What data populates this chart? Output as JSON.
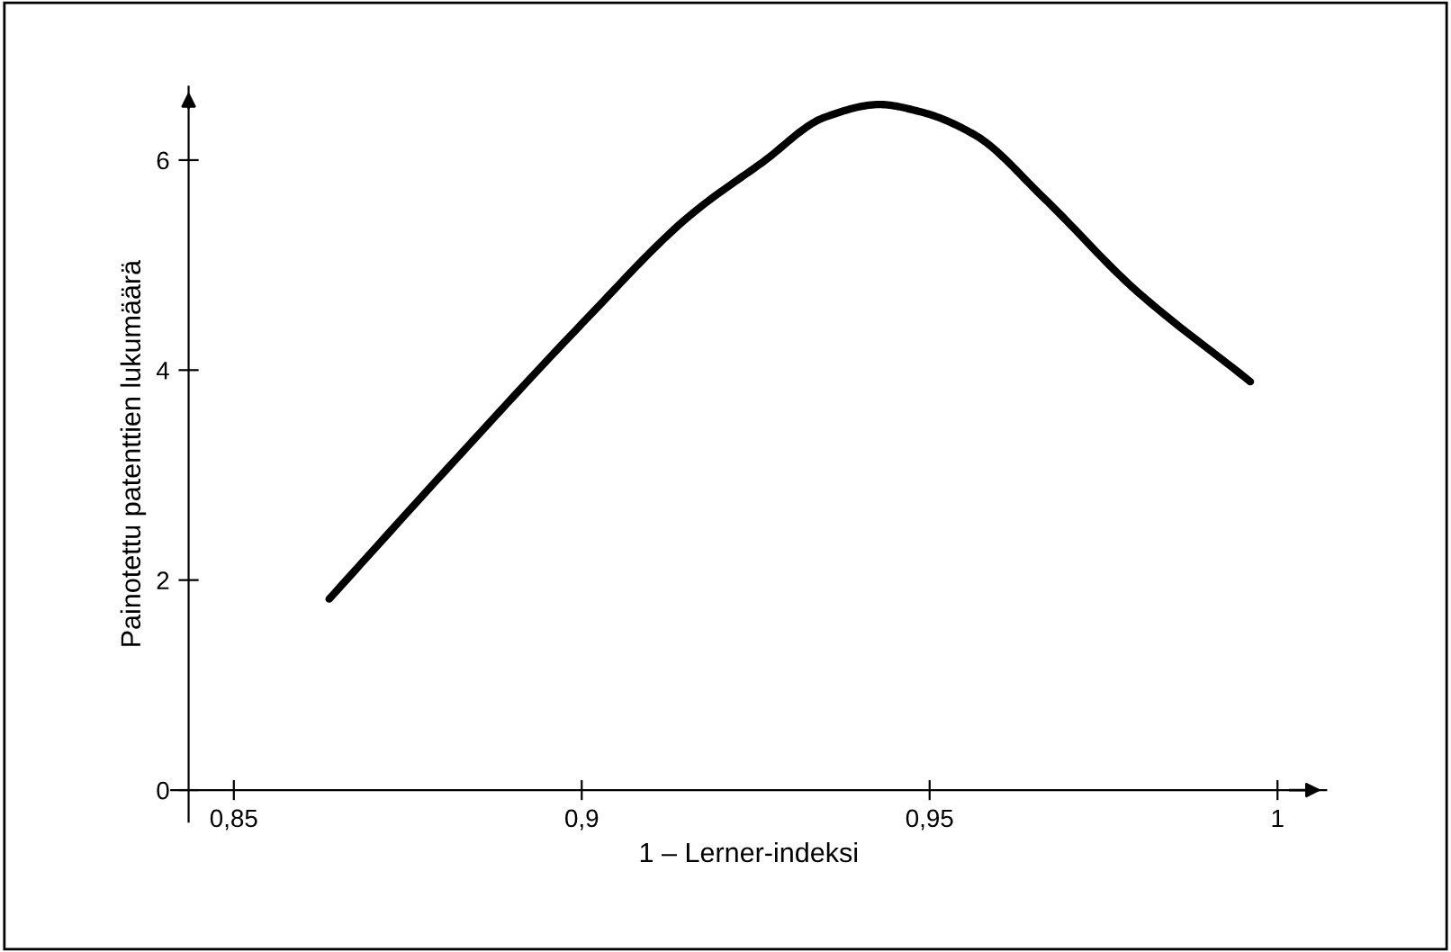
{
  "chart_data": {
    "type": "line",
    "xlabel": "1 – Lerner-indeksi",
    "ylabel": "Painotettu patenttien lukumäärä",
    "x": [
      0.8637,
      0.8819,
      0.9,
      0.9155,
      0.926,
      0.935,
      0.9428,
      0.9487,
      0.9565,
      0.9664,
      0.9793,
      0.9961
    ],
    "series": [
      {
        "color": "#000000",
        "values": [
          1.82,
          3.15,
          4.44,
          5.47,
          5.98,
          6.41,
          6.53,
          6.46,
          6.24,
          5.64,
          4.78,
          3.89
        ]
      }
    ],
    "xlim": [
      0.841,
      1.007
    ],
    "ylim": [
      -0.3,
      6.7
    ],
    "xticks": [
      {
        "value": 0.85,
        "label": "0,85"
      },
      {
        "value": 0.9,
        "label": "0,9"
      },
      {
        "value": 0.95,
        "label": "0,95"
      },
      1
    ],
    "yticks": [
      0,
      2,
      4,
      6
    ],
    "grid": false,
    "legend": false,
    "marker": "none",
    "line_style": "solid"
  }
}
